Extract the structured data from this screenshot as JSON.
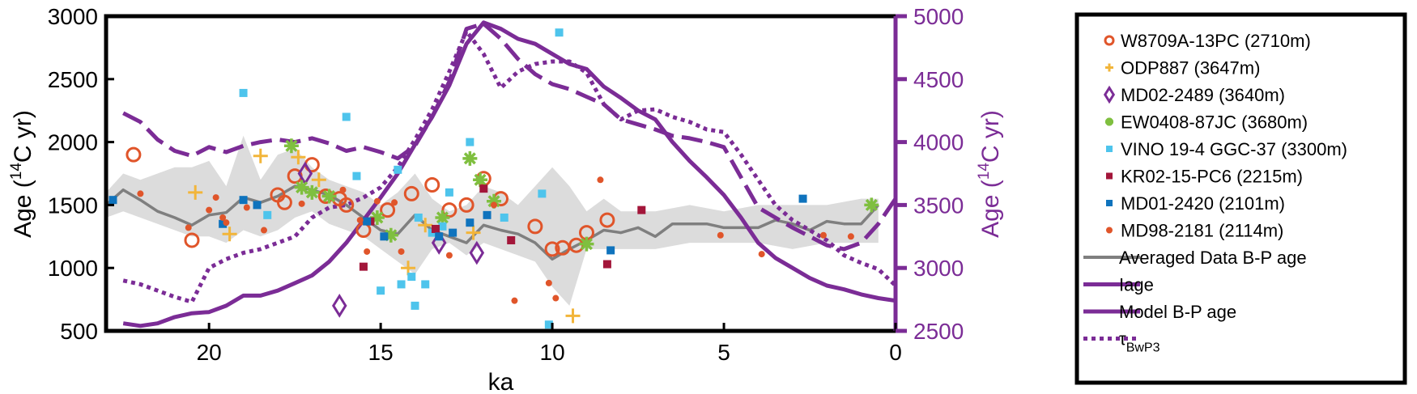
{
  "chart_data": {
    "type": "scatter",
    "title": "",
    "xlabel": "ka",
    "ylabel_left": "Age (14C yr)",
    "ylabel_right": "Age (14C yr)",
    "xlim": [
      23,
      0
    ],
    "ylim_left": [
      500,
      3000
    ],
    "ylim_right": [
      2500,
      5000
    ],
    "x_ticks": [
      20,
      15,
      10,
      5,
      0
    ],
    "y_ticks_left": [
      500,
      1000,
      1500,
      2000,
      2500,
      3000
    ],
    "y_ticks_right": [
      2500,
      3000,
      3500,
      4000,
      4500,
      5000
    ],
    "grid": false,
    "legend_position": "outside-right",
    "colors": {
      "purple": "#7b2c96",
      "grey_line": "#7f7f7f",
      "band": "#dcdcdc",
      "orange": "#e0552a",
      "yellow": "#f2b53a",
      "green": "#7fbf3f",
      "light_blue": "#4ec4ec",
      "dark_red": "#a3163a",
      "blue": "#0f73bd"
    },
    "legend": [
      {
        "label": "W8709A-13PC (2710m)",
        "marker": "circle-open",
        "color": "#e0552a"
      },
      {
        "label": "ODP887 (3647m)",
        "marker": "plus",
        "color": "#f2b53a"
      },
      {
        "label": "MD02-2489 (3640m)",
        "marker": "diamond",
        "color": "#7b2c96"
      },
      {
        "label": "EW0408-87JC (3680m)",
        "marker": "asterisk",
        "color": "#7fbf3f"
      },
      {
        "label": "VINO 19-4 GGC-37 (3300m)",
        "marker": "square",
        "color": "#4ec4ec"
      },
      {
        "label": "KR02-15-PC6 (2215m)",
        "marker": "square",
        "color": "#a3163a"
      },
      {
        "label": "MD01-2420 (2101m)",
        "marker": "square",
        "color": "#0f73bd"
      },
      {
        "label": "MD98-2181 (2114m)",
        "marker": "dot",
        "color": "#e0552a"
      },
      {
        "label": "Averaged Data B-P age",
        "marker": "line",
        "color": "#7f7f7f"
      },
      {
        "label": "Iage",
        "marker": "line",
        "color": "#7b2c96"
      },
      {
        "label": "Model B-P age",
        "marker": "line",
        "color": "#7b2c96"
      },
      {
        "label": "τ",
        "label_sub": "BwP3",
        "marker": "dotted",
        "color": "#7b2c96"
      }
    ],
    "band": {
      "x": [
        23,
        22.5,
        22,
        21,
        20.5,
        20,
        19.5,
        19,
        18.5,
        18,
        17.5,
        17,
        16.5,
        16,
        15.5,
        15,
        14.5,
        14,
        13.5,
        13,
        12.5,
        12,
        11.5,
        11,
        10.5,
        10,
        9.5,
        9,
        8.5,
        8,
        7,
        6,
        5,
        4,
        3,
        2,
        1,
        0.5
      ],
      "upper": [
        1600,
        1750,
        1700,
        1800,
        1800,
        1850,
        1650,
        2050,
        1700,
        1900,
        1950,
        1800,
        1700,
        1650,
        1600,
        1500,
        1600,
        1750,
        1550,
        1450,
        1500,
        1650,
        1600,
        1500,
        1650,
        1800,
        1650,
        1450,
        1550,
        1450,
        1450,
        1500,
        1450,
        1500,
        1500,
        1500,
        1550,
        1550
      ],
      "lower": [
        1400,
        1450,
        1400,
        1300,
        1250,
        1250,
        1200,
        1300,
        1250,
        1300,
        1400,
        1450,
        1350,
        1300,
        1250,
        1150,
        1050,
        950,
        1150,
        1200,
        1100,
        1200,
        1150,
        1100,
        1050,
        850,
        700,
        1150,
        1150,
        1150,
        1150,
        1200,
        1200,
        1200,
        1150,
        1200,
        1200,
        1200
      ]
    },
    "series": [
      {
        "name": "Averaged Data B-P age",
        "axis": "left",
        "style": "line",
        "x": [
          23,
          22.5,
          22,
          21.5,
          21,
          20.5,
          20,
          19.5,
          19,
          18.5,
          18,
          17.5,
          17,
          16.5,
          16,
          15.5,
          15,
          14.5,
          14,
          13.5,
          13,
          12.5,
          12,
          11.5,
          11,
          10.5,
          10,
          9.5,
          9,
          8.5,
          8,
          7.5,
          7,
          6.5,
          6,
          5.5,
          5,
          4.5,
          4,
          3.5,
          3,
          2.5,
          2,
          1.5,
          1,
          0.5
        ],
        "y": [
          1500,
          1620,
          1540,
          1450,
          1400,
          1340,
          1420,
          1440,
          1560,
          1520,
          1570,
          1650,
          1620,
          1580,
          1500,
          1400,
          1300,
          1270,
          1420,
          1300,
          1250,
          1200,
          1340,
          1300,
          1270,
          1200,
          1070,
          1150,
          1220,
          1300,
          1280,
          1320,
          1250,
          1350,
          1350,
          1350,
          1320,
          1320,
          1320,
          1380,
          1350,
          1300,
          1370,
          1350,
          1350,
          1500
        ]
      },
      {
        "name": "Iage",
        "axis": "right",
        "style": "solid",
        "x": [
          22.5,
          22,
          21.5,
          21,
          20.5,
          20,
          19.5,
          19,
          18.5,
          18,
          17.5,
          17,
          16.5,
          16,
          15.5,
          15,
          14.5,
          14,
          13.5,
          13,
          12.5,
          12,
          11.5,
          11,
          10.5,
          10,
          9.5,
          9,
          8.5,
          8,
          7.5,
          7,
          6.5,
          6,
          5.5,
          5,
          4.5,
          4,
          3.5,
          3,
          2.5,
          2,
          1.5,
          1,
          0.5,
          0
        ],
        "y": [
          2560,
          2540,
          2560,
          2610,
          2640,
          2650,
          2700,
          2780,
          2780,
          2820,
          2880,
          2940,
          3050,
          3200,
          3380,
          3560,
          3750,
          3980,
          4200,
          4450,
          4780,
          4950,
          4900,
          4820,
          4780,
          4700,
          4620,
          4580,
          4440,
          4350,
          4250,
          4180,
          4000,
          3850,
          3720,
          3580,
          3400,
          3200,
          3080,
          3000,
          2920,
          2860,
          2830,
          2790,
          2760,
          2740
        ]
      },
      {
        "name": "Model B-P age",
        "axis": "right",
        "style": "dashed",
        "x": [
          22.5,
          22,
          21.5,
          21,
          20.5,
          20,
          19.5,
          19,
          18.5,
          18,
          17.5,
          17,
          16.5,
          16,
          15.5,
          15,
          14.5,
          14,
          13.5,
          13,
          12.5,
          12,
          11.5,
          11,
          10.5,
          10,
          9.5,
          9,
          8.5,
          8,
          7.5,
          7,
          6.5,
          6,
          5.5,
          5,
          4.5,
          4,
          3.5,
          3,
          2.5,
          2,
          1.5,
          1,
          0.5,
          0
        ],
        "y": [
          4230,
          4160,
          4020,
          3930,
          3890,
          3960,
          3920,
          3970,
          4000,
          4020,
          4000,
          4030,
          3990,
          3930,
          3960,
          3920,
          3870,
          3970,
          4200,
          4480,
          4900,
          4940,
          4820,
          4660,
          4540,
          4460,
          4420,
          4360,
          4300,
          4180,
          4140,
          4100,
          4050,
          4030,
          4000,
          3960,
          3720,
          3480,
          3400,
          3320,
          3250,
          3180,
          3150,
          3200,
          3350,
          3550
        ]
      },
      {
        "name": "τBwP3",
        "axis": "right",
        "style": "dotted",
        "x": [
          22.5,
          22,
          21.5,
          21,
          20.5,
          20,
          19.5,
          19,
          18.5,
          18,
          17.5,
          17,
          16.5,
          16,
          15.5,
          15,
          14.5,
          14,
          13.5,
          13,
          12.5,
          12,
          11.5,
          11,
          10.5,
          10,
          9.5,
          9,
          8.5,
          8,
          7.5,
          7,
          6.5,
          6,
          5.5,
          5,
          4.5,
          4,
          3.5,
          3,
          2.5,
          2,
          1.5,
          1,
          0.5,
          0
        ],
        "y": [
          2900,
          2870,
          2820,
          2770,
          2730,
          3000,
          3070,
          3120,
          3150,
          3200,
          3250,
          3400,
          3480,
          3500,
          3560,
          3640,
          3800,
          4020,
          4260,
          4560,
          4880,
          4700,
          4430,
          4560,
          4620,
          4640,
          4640,
          4550,
          4300,
          4180,
          4250,
          4260,
          4200,
          4160,
          4100,
          4080,
          3900,
          3700,
          3500,
          3380,
          3300,
          3220,
          3100,
          3040,
          2990,
          2860
        ]
      }
    ],
    "points": [
      {
        "name": "W8709A-13PC (2710m)",
        "marker": "circle-open",
        "color": "#e0552a",
        "size": 8,
        "x": [
          22.2,
          20.5,
          18,
          17.8,
          17.5,
          17,
          16.6,
          16.2,
          16,
          15.5,
          14.8,
          14.1,
          13.5,
          13,
          12.5,
          12,
          11.5,
          10.5,
          10,
          9.7,
          9.3,
          9,
          8.4
        ],
        "y": [
          1900,
          1220,
          1580,
          1520,
          1730,
          1820,
          1570,
          1550,
          1500,
          1300,
          1460,
          1590,
          1660,
          1460,
          1500,
          1710,
          1550,
          1330,
          1150,
          1160,
          1180,
          1280,
          1380
        ]
      },
      {
        "name": "ODP887 (3647m)",
        "marker": "plus",
        "color": "#f2b53a",
        "size": 9,
        "x": [
          20.4,
          19.4,
          18.5,
          17.4,
          16.8,
          14.2,
          13.7,
          12.3,
          9.4
        ],
        "y": [
          1600,
          1270,
          1890,
          1880,
          1700,
          1000,
          1340,
          1280,
          620
        ]
      },
      {
        "name": "MD02-2489 (3640m)",
        "marker": "diamond",
        "color": "#7b2c96",
        "size": 10,
        "x": [
          17.2,
          16.2,
          13.3,
          12.2
        ],
        "y": [
          1750,
          700,
          1200,
          1120
        ]
      },
      {
        "name": "EW0408-87JC (3680m)",
        "marker": "asterisk",
        "color": "#7fbf3f",
        "size": 9,
        "x": [
          17.6,
          17.3,
          17.0,
          16.5,
          15.1,
          14.7,
          13.2,
          12.4,
          12.1,
          11.7,
          9.0,
          0.7
        ],
        "y": [
          1970,
          1640,
          1600,
          1570,
          1400,
          1260,
          1400,
          1870,
          1700,
          1530,
          1190,
          1500
        ]
      },
      {
        "name": "VINO 19-4 GGC-37 (3300m)",
        "marker": "square",
        "color": "#4ec4ec",
        "size": 5,
        "x": [
          19.0,
          18.3,
          16.0,
          15.7,
          15.0,
          14.5,
          14.4,
          14.1,
          14.0,
          13.9,
          13.7,
          13.5,
          13.2,
          13.0,
          12.4,
          11.4,
          10.3,
          10.1,
          9.8
        ],
        "y": [
          2390,
          1420,
          2200,
          1730,
          820,
          1780,
          870,
          930,
          700,
          1400,
          870,
          1280,
          1330,
          1600,
          2000,
          1400,
          1590,
          550,
          2870
        ]
      },
      {
        "name": "KR02-15-PC6 (2215m)",
        "marker": "square",
        "color": "#a3163a",
        "size": 5,
        "x": [
          15.5,
          15.3,
          13.4,
          12.0,
          11.2,
          8.4,
          7.4
        ],
        "y": [
          1010,
          1370,
          1310,
          1630,
          1220,
          1030,
          1460
        ]
      },
      {
        "name": "MD01-2420 (2101m)",
        "marker": "square",
        "color": "#0f73bd",
        "size": 5,
        "x": [
          22.8,
          19.6,
          19.0,
          18.6,
          15.4,
          14.9,
          13.3,
          12.9,
          12.4,
          11.9,
          8.3,
          2.7
        ],
        "y": [
          1540,
          1350,
          1540,
          1500,
          1370,
          1250,
          1250,
          1280,
          1360,
          1420,
          1140,
          1550
        ]
      },
      {
        "name": "MD98-2181 (2114m)",
        "marker": "dot",
        "color": "#e0552a",
        "size": 4,
        "x": [
          22.0,
          20.6,
          20.0,
          19.8,
          19.6,
          19.5,
          18.9,
          18.4,
          17.3,
          16.1,
          15.6,
          15.4,
          15.1,
          14.6,
          14.4,
          13.0,
          11.7,
          11.1,
          10.1,
          9.9,
          8.6,
          5.1,
          3.9,
          2.1,
          1.3
        ],
        "y": [
          1590,
          1320,
          1460,
          1560,
          1400,
          1360,
          1480,
          1300,
          1510,
          1620,
          1380,
          1130,
          1530,
          1520,
          1130,
          1100,
          1500,
          740,
          880,
          760,
          1700,
          1260,
          1110,
          1260,
          1250
        ]
      }
    ]
  }
}
